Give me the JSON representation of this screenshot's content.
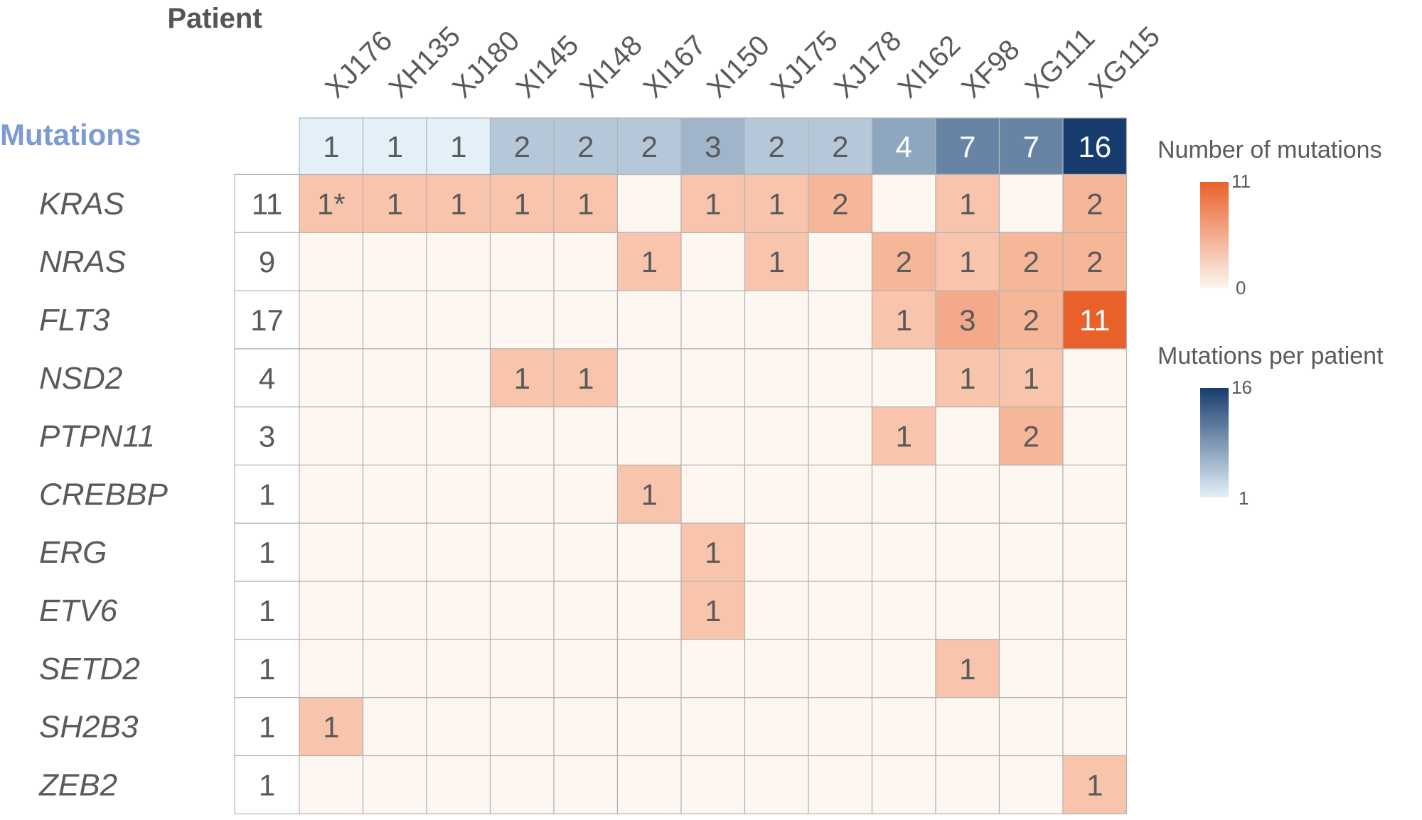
{
  "chart_data": {
    "type": "heatmap",
    "patient_header": "Patient",
    "mutations_header": "Mutations",
    "patients": [
      "XJ176",
      "XH135",
      "XJ180",
      "XI145",
      "XI148",
      "XI167",
      "XI150",
      "XJ175",
      "XJ178",
      "XI162",
      "XF98",
      "XG111",
      "XG115"
    ],
    "mutations_per_patient": [
      1,
      1,
      1,
      2,
      2,
      2,
      3,
      2,
      2,
      4,
      7,
      7,
      16
    ],
    "genes": [
      "KRAS",
      "NRAS",
      "FLT3",
      "NSD2",
      "PTPN11",
      "CREBBP",
      "ERG",
      "ETV6",
      "SETD2",
      "SH2B3",
      "ZEB2"
    ],
    "gene_totals": [
      11,
      9,
      17,
      4,
      3,
      1,
      1,
      1,
      1,
      1,
      1
    ],
    "matrix": [
      [
        1,
        1,
        1,
        1,
        1,
        null,
        1,
        1,
        2,
        null,
        1,
        null,
        2
      ],
      [
        null,
        null,
        null,
        null,
        null,
        1,
        null,
        1,
        null,
        2,
        1,
        2,
        2
      ],
      [
        null,
        null,
        null,
        null,
        null,
        null,
        null,
        null,
        null,
        1,
        3,
        2,
        11
      ],
      [
        null,
        null,
        null,
        1,
        1,
        null,
        null,
        null,
        null,
        null,
        1,
        1,
        null
      ],
      [
        null,
        null,
        null,
        null,
        null,
        null,
        null,
        null,
        null,
        1,
        null,
        2,
        null
      ],
      [
        null,
        null,
        null,
        null,
        null,
        1,
        null,
        null,
        null,
        null,
        null,
        null,
        null
      ],
      [
        null,
        null,
        null,
        null,
        null,
        null,
        1,
        null,
        null,
        null,
        null,
        null,
        null
      ],
      [
        null,
        null,
        null,
        null,
        null,
        null,
        1,
        null,
        null,
        null,
        null,
        null,
        null
      ],
      [
        null,
        null,
        null,
        null,
        null,
        null,
        null,
        null,
        null,
        null,
        1,
        null,
        null
      ],
      [
        1,
        null,
        null,
        null,
        null,
        null,
        null,
        null,
        null,
        null,
        null,
        null,
        null
      ],
      [
        null,
        null,
        null,
        null,
        null,
        null,
        null,
        null,
        null,
        null,
        null,
        null,
        1
      ]
    ],
    "cell_labels": [
      [
        "1*",
        "1",
        "1",
        "1",
        "1",
        null,
        "1",
        "1",
        "2",
        null,
        "1",
        null,
        "2"
      ],
      [
        null,
        null,
        null,
        null,
        null,
        "1",
        null,
        "1",
        null,
        "2",
        "1",
        "2",
        "2"
      ],
      [
        null,
        null,
        null,
        null,
        null,
        null,
        null,
        null,
        null,
        "1",
        "3",
        "2",
        "11"
      ],
      [
        null,
        null,
        null,
        "1",
        "1",
        null,
        null,
        null,
        null,
        null,
        "1",
        "1",
        null
      ],
      [
        null,
        null,
        null,
        null,
        null,
        null,
        null,
        null,
        null,
        "1",
        null,
        "2",
        null
      ],
      [
        null,
        null,
        null,
        null,
        null,
        "1",
        null,
        null,
        null,
        null,
        null,
        null,
        null
      ],
      [
        null,
        null,
        null,
        null,
        null,
        null,
        "1",
        null,
        null,
        null,
        null,
        null,
        null
      ],
      [
        null,
        null,
        null,
        null,
        null,
        null,
        "1",
        null,
        null,
        null,
        null,
        null,
        null
      ],
      [
        null,
        null,
        null,
        null,
        null,
        null,
        null,
        null,
        null,
        null,
        "1",
        null,
        null
      ],
      [
        "1",
        null,
        null,
        null,
        null,
        null,
        null,
        null,
        null,
        null,
        null,
        null,
        null
      ],
      [
        null,
        null,
        null,
        null,
        null,
        null,
        null,
        null,
        null,
        null,
        null,
        null,
        "1"
      ]
    ],
    "legend": {
      "count_title": "Number of mutations",
      "count_range": [
        0,
        11
      ],
      "count_max_label": "11",
      "count_min_label": "0",
      "patient_title": "Mutations per patient",
      "patient_range": [
        1,
        16
      ],
      "patient_max_label": "16",
      "patient_min_label": "1"
    },
    "colors": {
      "orange_low": "#fdf6f1",
      "orange_high": "#e9612a",
      "blue_low": "#e3f0f8",
      "blue_high": "#173d6e",
      "mutations_header": "#7b9bd1",
      "text": "#5a5a5a",
      "grid": "#b3b3b3"
    }
  }
}
